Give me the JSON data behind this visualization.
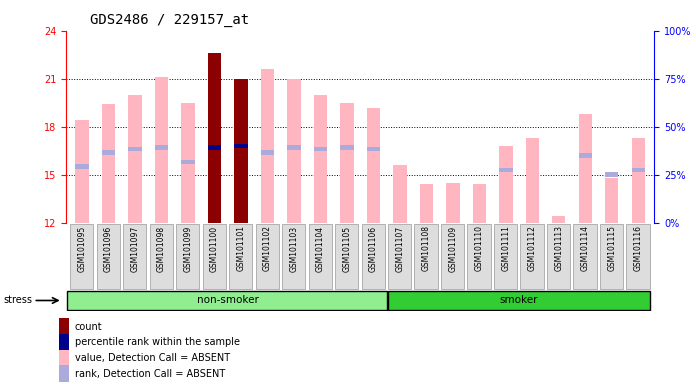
{
  "title": "GDS2486 / 229157_at",
  "samples": [
    "GSM101095",
    "GSM101096",
    "GSM101097",
    "GSM101098",
    "GSM101099",
    "GSM101100",
    "GSM101101",
    "GSM101102",
    "GSM101103",
    "GSM101104",
    "GSM101105",
    "GSM101106",
    "GSM101107",
    "GSM101108",
    "GSM101109",
    "GSM101110",
    "GSM101111",
    "GSM101112",
    "GSM101113",
    "GSM101114",
    "GSM101115",
    "GSM101116"
  ],
  "group": [
    "non-smoker",
    "non-smoker",
    "non-smoker",
    "non-smoker",
    "non-smoker",
    "non-smoker",
    "non-smoker",
    "non-smoker",
    "non-smoker",
    "non-smoker",
    "non-smoker",
    "non-smoker",
    "smoker",
    "smoker",
    "smoker",
    "smoker",
    "smoker",
    "smoker",
    "smoker",
    "smoker",
    "smoker",
    "smoker"
  ],
  "values": [
    18.4,
    19.4,
    20.0,
    21.1,
    19.5,
    22.6,
    21.0,
    21.6,
    21.0,
    20.0,
    19.5,
    19.2,
    15.6,
    14.4,
    14.5,
    14.4,
    16.8,
    17.3,
    12.4,
    18.8,
    14.8,
    17.3
  ],
  "ranks": [
    15.5,
    16.4,
    16.6,
    16.7,
    15.8,
    16.7,
    16.8,
    16.4,
    16.7,
    16.6,
    16.7,
    16.6,
    null,
    null,
    null,
    null,
    15.3,
    null,
    null,
    16.2,
    15.0,
    15.3
  ],
  "counts": [
    null,
    null,
    null,
    null,
    null,
    22.6,
    21.0,
    null,
    null,
    null,
    null,
    null,
    null,
    null,
    null,
    null,
    null,
    null,
    null,
    null,
    null,
    null
  ],
  "count_ranks": [
    null,
    null,
    null,
    null,
    null,
    16.7,
    16.8,
    null,
    null,
    null,
    null,
    null,
    null,
    null,
    null,
    null,
    null,
    null,
    null,
    null,
    null,
    null
  ],
  "bar_bottom": 12,
  "ylim_left": [
    12,
    24
  ],
  "ylim_right": [
    0,
    100
  ],
  "yticks_left": [
    12,
    15,
    18,
    21,
    24
  ],
  "yticks_right": [
    0,
    25,
    50,
    75,
    100
  ],
  "dotted_lines": [
    15,
    18,
    21
  ],
  "value_bar_color": "#FFB6C1",
  "rank_bar_color": "#AAAADD",
  "count_bar_color": "#8B0000",
  "count_rank_color": "#00008B",
  "non_smoker_color": "#90EE90",
  "smoker_color": "#32CD32",
  "title_fontsize": 10,
  "tick_fontsize": 7,
  "left_axis_color": "red",
  "right_axis_color": "blue",
  "legend_labels": [
    "count",
    "percentile rank within the sample",
    "value, Detection Call = ABSENT",
    "rank, Detection Call = ABSENT"
  ],
  "legend_colors": [
    "#8B0000",
    "#00008B",
    "#FFB6C1",
    "#AAAADD"
  ]
}
